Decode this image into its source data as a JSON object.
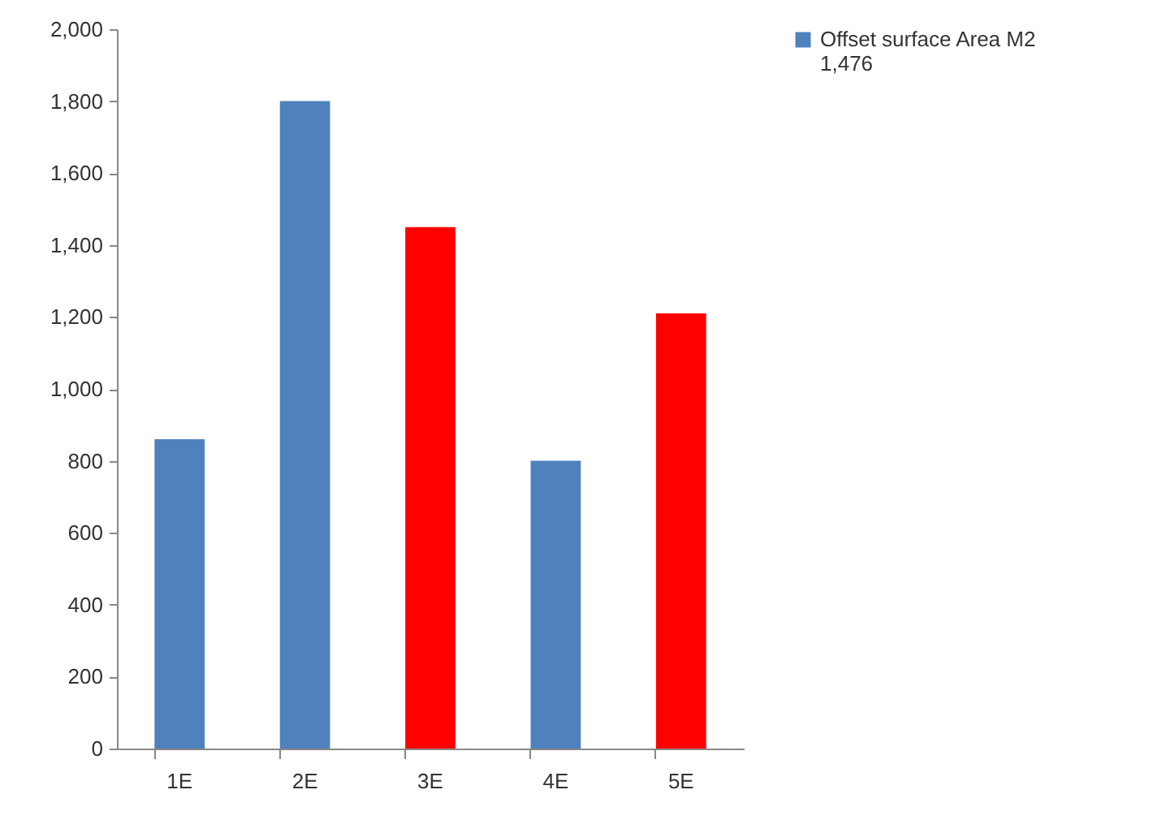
{
  "chart_data": {
    "type": "bar",
    "categories": [
      "1E",
      "2E",
      "3E",
      "4E",
      "5E"
    ],
    "series": [
      {
        "name": "Offset surface Area M2 1,476",
        "color": "#4f81bd",
        "values": [
          860,
          1800,
          1450,
          800,
          1210
        ],
        "colors": [
          "#4f81bd",
          "#4f81bd",
          "#ff0000",
          "#4f81bd",
          "#ff0000"
        ]
      }
    ],
    "ylim": [
      0,
      2000
    ],
    "yticks": [
      {
        "value": 0,
        "label": "0"
      },
      {
        "value": 200,
        "label": "200"
      },
      {
        "value": 400,
        "label": "400"
      },
      {
        "value": 600,
        "label": "600"
      },
      {
        "value": 800,
        "label": "800"
      },
      {
        "value": 1000,
        "label": "1,000"
      },
      {
        "value": 1200,
        "label": "1,200"
      },
      {
        "value": 1400,
        "label": "1,400"
      },
      {
        "value": 1600,
        "label": "1,600"
      },
      {
        "value": 1800,
        "label": "1,800"
      },
      {
        "value": 2000,
        "label": "2,000"
      }
    ],
    "grid": false,
    "legend": "right"
  }
}
